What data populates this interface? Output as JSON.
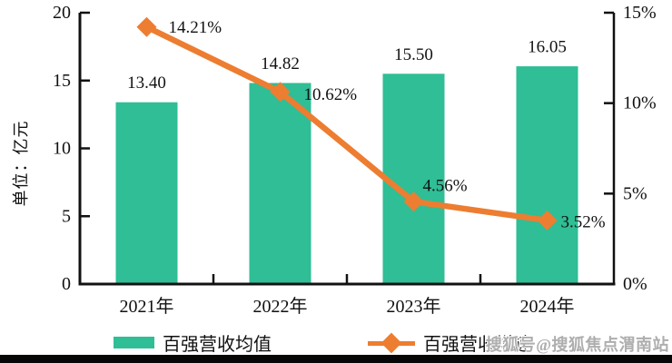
{
  "chart_data": {
    "type": "bar",
    "subtype": "combo-bar-line",
    "categories": [
      "2021年",
      "2022年",
      "2023年",
      "2024年"
    ],
    "series": [
      {
        "name": "百强营收均值",
        "type": "bar",
        "axis": "left",
        "values": [
          13.4,
          14.82,
          15.5,
          16.05
        ],
        "labels": [
          "13.40",
          "14.82",
          "15.50",
          "16.05"
        ],
        "color": "#2FBE96"
      },
      {
        "name": "百强营收增速",
        "type": "line",
        "axis": "right",
        "marker": "diamond",
        "values": [
          14.21,
          10.62,
          4.56,
          3.52
        ],
        "labels": [
          "14.21%",
          "10.62%",
          "4.56%",
          "3.52%"
        ],
        "color": "#ED7D31"
      }
    ],
    "left_axis": {
      "title": "单位：亿元",
      "min": 0,
      "max": 20,
      "tick_values": [
        0,
        5,
        10,
        15,
        20
      ],
      "tick_labels": [
        "0",
        "5",
        "10",
        "15",
        "20"
      ]
    },
    "right_axis": {
      "min": 0,
      "max": 15,
      "tick_values": [
        0,
        5,
        10,
        15
      ],
      "tick_labels": [
        "0%",
        "5%",
        "10%",
        "15%"
      ]
    },
    "grid": false,
    "legend_position": "bottom"
  },
  "legend": {
    "bar_label": "百强营收均值",
    "line_label": "百强营收增速"
  },
  "watermark": "搜狐号@搜狐焦点渭南站",
  "colors": {
    "bar": "#2FBE96",
    "line": "#ED7D31",
    "axis": "#111111",
    "watermark": "#AEAEAE"
  }
}
